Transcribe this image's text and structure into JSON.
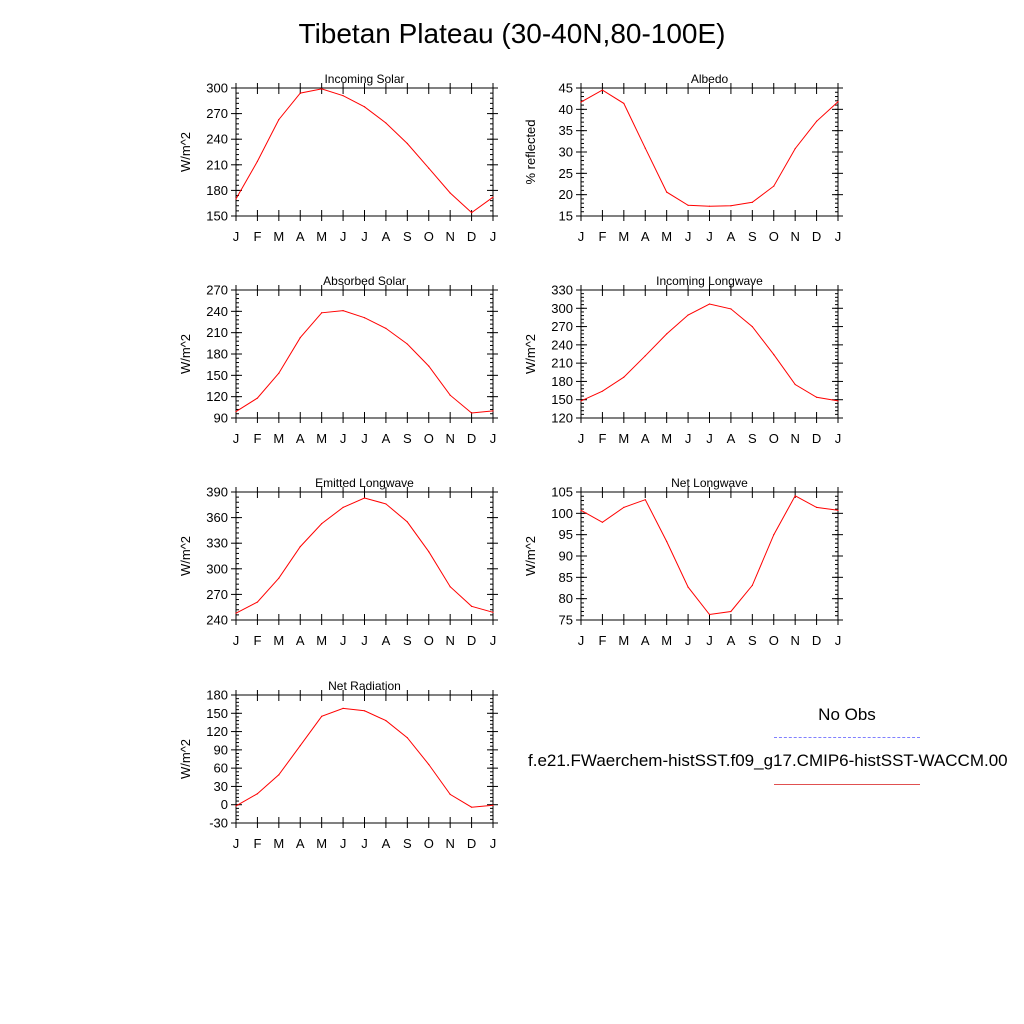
{
  "title": "Tibetan Plateau (30-40N,80-100E)",
  "legend": {
    "obs_label": "No Obs",
    "case_label": "f.e21.FWaerchem-histSST.f09_g17.CMIP6-histSST-WACCM.00",
    "obs_color": "#8080ff",
    "case_color": "#e05050"
  },
  "colors": {
    "series": "#ff0000",
    "axis": "#000000"
  },
  "chart_data": [
    {
      "type": "line",
      "title": "Incoming Solar",
      "ylabel": "W/m^2",
      "categories": [
        "J",
        "F",
        "M",
        "A",
        "M",
        "J",
        "J",
        "A",
        "S",
        "O",
        "N",
        "D",
        "J"
      ],
      "ylim": [
        150,
        300
      ],
      "yticks": [
        150,
        180,
        210,
        240,
        270,
        300
      ],
      "series": [
        {
          "values": [
            170,
            214,
            263,
            294,
            299,
            291,
            278,
            259,
            235,
            206,
            177,
            154,
            172
          ]
        }
      ]
    },
    {
      "type": "line",
      "title": "Albedo",
      "ylabel": "% reflected",
      "categories": [
        "J",
        "F",
        "M",
        "A",
        "M",
        "J",
        "J",
        "A",
        "S",
        "O",
        "N",
        "D",
        "J"
      ],
      "ylim": [
        15,
        45
      ],
      "yticks": [
        15,
        20,
        25,
        30,
        35,
        40,
        45
      ],
      "series": [
        {
          "values": [
            41.7,
            44.5,
            41.4,
            30.9,
            20.6,
            17.5,
            17.3,
            17.4,
            18.2,
            22.0,
            30.8,
            37.2,
            41.8
          ]
        }
      ]
    },
    {
      "type": "line",
      "title": "Absorbed Solar",
      "ylabel": "W/m^2",
      "categories": [
        "J",
        "F",
        "M",
        "A",
        "M",
        "J",
        "J",
        "A",
        "S",
        "O",
        "N",
        "D",
        "J"
      ],
      "ylim": [
        90,
        270
      ],
      "yticks": [
        90,
        120,
        150,
        180,
        210,
        240,
        270
      ],
      "series": [
        {
          "values": [
            99,
            118,
            153,
            203,
            238,
            241,
            231,
            216,
            194,
            163,
            122,
            97,
            100
          ]
        }
      ]
    },
    {
      "type": "line",
      "title": "Incoming Longwave",
      "ylabel": "W/m^2",
      "categories": [
        "J",
        "F",
        "M",
        "A",
        "M",
        "J",
        "J",
        "A",
        "S",
        "O",
        "N",
        "D",
        "J"
      ],
      "ylim": [
        120,
        330
      ],
      "yticks": [
        120,
        150,
        180,
        210,
        240,
        270,
        300,
        330
      ],
      "series": [
        {
          "values": [
            148,
            164,
            187,
            222,
            258,
            289,
            307,
            299,
            270,
            224,
            175,
            154,
            148
          ]
        }
      ]
    },
    {
      "type": "line",
      "title": "Emitted Longwave",
      "ylabel": "W/m^2",
      "categories": [
        "J",
        "F",
        "M",
        "A",
        "M",
        "J",
        "J",
        "A",
        "S",
        "O",
        "N",
        "D",
        "J"
      ],
      "ylim": [
        240,
        390
      ],
      "yticks": [
        240,
        270,
        300,
        330,
        360,
        390
      ],
      "series": [
        {
          "values": [
            248,
            261,
            289,
            326,
            353,
            372,
            383,
            376,
            355,
            320,
            279,
            256,
            249
          ]
        }
      ]
    },
    {
      "type": "line",
      "title": "Net Longwave",
      "ylabel": "W/m^2",
      "categories": [
        "J",
        "F",
        "M",
        "A",
        "M",
        "J",
        "J",
        "A",
        "S",
        "O",
        "N",
        "D",
        "J"
      ],
      "ylim": [
        75,
        105
      ],
      "yticks": [
        75,
        80,
        85,
        90,
        95,
        100,
        105
      ],
      "series": [
        {
          "values": [
            100.7,
            97.9,
            101.4,
            103.2,
            93.4,
            82.7,
            76.3,
            77.0,
            83.1,
            95.0,
            104.1,
            101.4,
            100.7
          ]
        }
      ]
    },
    {
      "type": "line",
      "title": "Net Radiation",
      "ylabel": "W/m^2",
      "categories": [
        "J",
        "F",
        "M",
        "A",
        "M",
        "J",
        "J",
        "A",
        "S",
        "O",
        "N",
        "D",
        "J"
      ],
      "ylim": [
        -30,
        180
      ],
      "yticks": [
        -30,
        0,
        30,
        60,
        90,
        120,
        150,
        180
      ],
      "series": [
        {
          "values": [
            -2,
            18,
            49,
            97,
            145,
            158,
            154,
            138,
            110,
            66,
            17,
            -4,
            -1
          ]
        }
      ]
    }
  ]
}
